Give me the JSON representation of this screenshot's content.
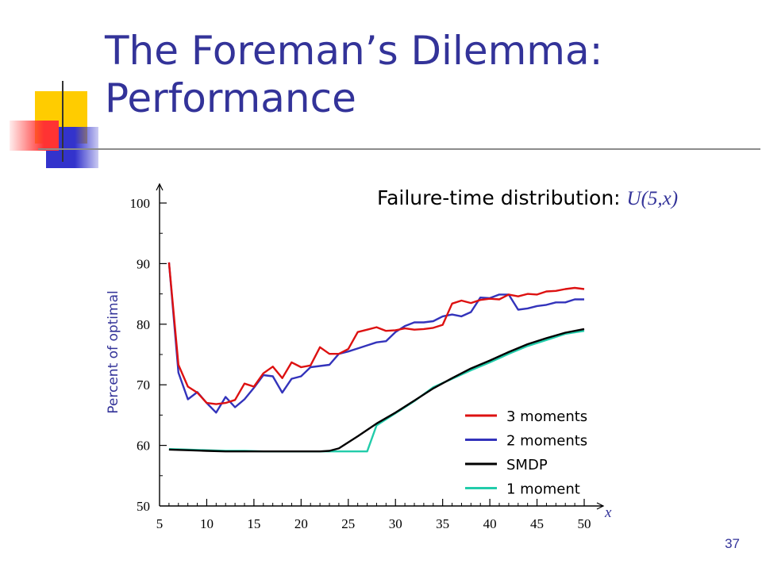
{
  "slide": {
    "title_line1": "The Foreman’s Dilemma:",
    "title_line2": "Performance",
    "page_number": "37"
  },
  "chart_data": {
    "type": "line",
    "annotation": "Failure-time distribution: ",
    "annotation_formula": "U(5,x)",
    "xlabel": "x",
    "ylabel": "Percent of optimal",
    "xlim": [
      5,
      50
    ],
    "ylim": [
      50,
      100
    ],
    "xticks": [
      5,
      10,
      15,
      20,
      25,
      30,
      35,
      40,
      45,
      50
    ],
    "yticks": [
      50,
      60,
      70,
      80,
      90,
      100
    ],
    "legend_position": "bottom-right",
    "series": [
      {
        "name": "3 moments",
        "color": "#dd1111",
        "x": [
          6,
          7,
          8,
          9,
          10,
          11,
          12,
          13,
          14,
          15,
          16,
          17,
          18,
          19,
          20,
          21,
          22,
          23,
          24,
          25,
          26,
          27,
          28,
          29,
          30,
          31,
          32,
          33,
          34,
          35,
          36,
          37,
          38,
          39,
          40,
          41,
          42,
          43,
          44,
          45,
          46,
          47,
          48,
          49,
          50
        ],
        "y": [
          90.2,
          73.3,
          69.7,
          68.7,
          67.0,
          66.8,
          67.0,
          67.5,
          70.2,
          69.7,
          71.9,
          73.0,
          71.1,
          73.7,
          72.9,
          73.2,
          76.2,
          75.1,
          75.1,
          75.9,
          78.7,
          79.1,
          79.5,
          78.9,
          79.0,
          79.3,
          79.1,
          79.2,
          79.4,
          79.9,
          83.4,
          83.9,
          83.5,
          84.0,
          84.2,
          84.1,
          84.9,
          84.6,
          85.0,
          84.9,
          85.4,
          85.5,
          85.8,
          86.0,
          85.8
        ]
      },
      {
        "name": "2 moments",
        "color": "#3333bb",
        "x": [
          6,
          7,
          8,
          9,
          10,
          11,
          12,
          13,
          14,
          15,
          16,
          17,
          18,
          19,
          20,
          21,
          22,
          23,
          24,
          25,
          26,
          27,
          28,
          29,
          30,
          31,
          32,
          33,
          34,
          35,
          36,
          37,
          38,
          39,
          40,
          41,
          42,
          43,
          44,
          45,
          46,
          47,
          48,
          49,
          50
        ],
        "y": [
          90.2,
          72.0,
          67.6,
          68.8,
          67.0,
          65.4,
          68.0,
          66.3,
          67.6,
          69.5,
          71.6,
          71.4,
          68.7,
          71.0,
          71.4,
          72.9,
          73.1,
          73.3,
          75.1,
          75.5,
          76.0,
          76.5,
          77.0,
          77.2,
          78.7,
          79.7,
          80.3,
          80.3,
          80.5,
          81.3,
          81.6,
          81.3,
          82.0,
          84.4,
          84.3,
          84.9,
          84.9,
          82.4,
          82.6,
          83.0,
          83.2,
          83.6,
          83.6,
          84.1,
          84.1
        ]
      },
      {
        "name": "SMDP",
        "color": "#000000",
        "x": [
          6,
          8,
          10,
          12,
          14,
          16,
          18,
          20,
          22,
          23,
          24,
          26,
          28,
          30,
          32,
          34,
          36,
          38,
          40,
          42,
          44,
          46,
          48,
          50
        ],
        "y": [
          59.3,
          59.2,
          59.1,
          59.0,
          59.0,
          59.0,
          59.0,
          59.0,
          59.0,
          59.1,
          59.5,
          61.5,
          63.6,
          65.4,
          67.4,
          69.4,
          71.1,
          72.7,
          74.0,
          75.4,
          76.7,
          77.7,
          78.6,
          79.2
        ]
      },
      {
        "name": "1 moment",
        "color": "#22ccaa",
        "x": [
          6,
          8,
          10,
          12,
          14,
          16,
          18,
          20,
          22,
          24,
          26,
          27,
          28,
          30,
          32,
          34,
          36,
          38,
          40,
          42,
          44,
          46,
          48,
          50
        ],
        "y": [
          59.4,
          59.3,
          59.2,
          59.1,
          59.1,
          59.0,
          59.0,
          59.0,
          59.0,
          59.0,
          59.0,
          59.0,
          63.3,
          65.3,
          67.3,
          69.6,
          71.0,
          72.4,
          73.7,
          75.1,
          76.4,
          77.4,
          78.4,
          78.9
        ]
      }
    ]
  }
}
